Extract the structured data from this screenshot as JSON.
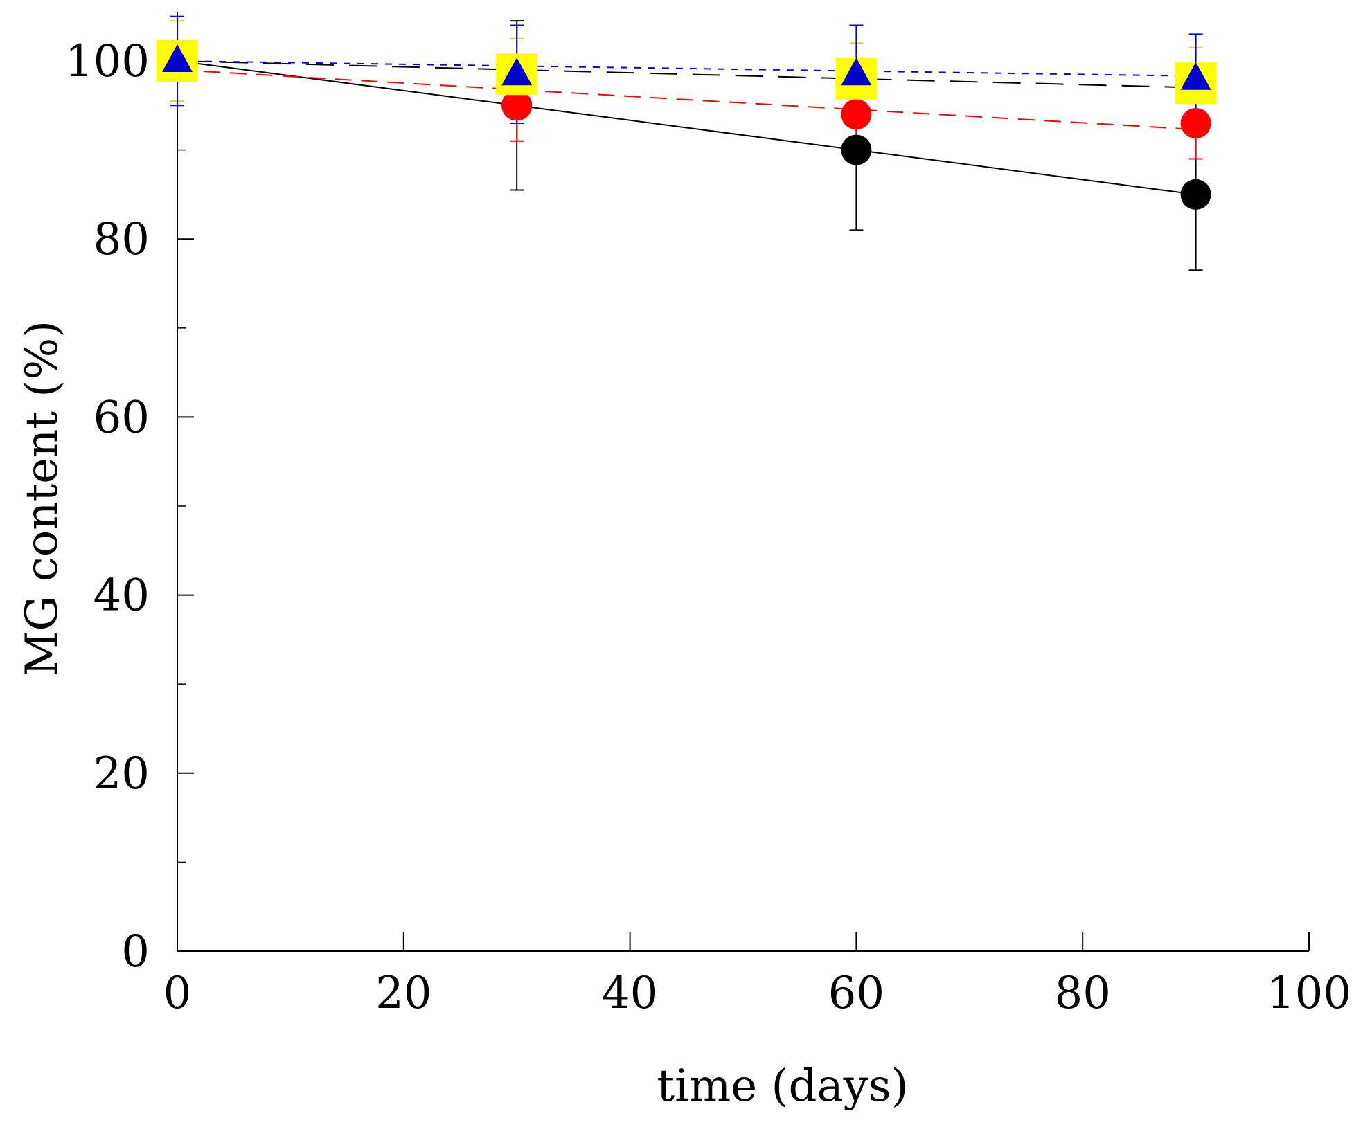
{
  "chart_data": {
    "type": "scatter",
    "title": "",
    "xlabel": "time (days)",
    "ylabel": "MG content (%)",
    "xlim": [
      0,
      100
    ],
    "ylim": [
      0,
      100
    ],
    "xticks": [
      0,
      20,
      40,
      60,
      80,
      100
    ],
    "yticks": [
      0,
      20,
      40,
      60,
      80,
      100
    ],
    "xtick_labels": [
      "0",
      "20",
      "40",
      "60",
      "80",
      "100"
    ],
    "ytick_labels": [
      "0",
      "20",
      "40",
      "60",
      "80",
      "100"
    ],
    "grid": false,
    "legend": false,
    "series": [
      {
        "name": "black-circles",
        "marker": "circle",
        "color": "#000000",
        "x": [
          0,
          30,
          60,
          90
        ],
        "y": [
          100,
          95,
          90,
          85
        ],
        "err": [
          0,
          9.5,
          9,
          8.5
        ],
        "fit_line": {
          "style": "solid",
          "color": "#000000",
          "x": [
            0,
            90
          ],
          "y": [
            100,
            85
          ]
        }
      },
      {
        "name": "red-circles",
        "marker": "circle",
        "color": "#ff0000",
        "x": [
          0,
          30,
          60,
          90
        ],
        "y": [
          100,
          95,
          94,
          93
        ],
        "err": [
          0,
          4,
          3.5,
          4
        ],
        "fit_line": {
          "style": "dashed",
          "color": "#ff0000",
          "x": [
            0,
            90
          ],
          "y": [
            99,
            92.3
          ]
        }
      },
      {
        "name": "yellow-squares",
        "marker": "square",
        "color": "#ffff00",
        "x": [
          0,
          30,
          60,
          90
        ],
        "y": [
          100,
          98.5,
          98,
          97.5
        ],
        "err": [
          4.5,
          4,
          4,
          4
        ],
        "fit_line": {
          "style": "long-dashed",
          "color": "#000000",
          "x": [
            0,
            90
          ],
          "y": [
            100,
            97
          ]
        }
      },
      {
        "name": "blue-triangles",
        "marker": "triangle",
        "color": "#0000cc",
        "x": [
          0,
          30,
          60,
          90
        ],
        "y": [
          100,
          98.5,
          98.5,
          98
        ],
        "err": [
          5,
          5.5,
          5.5,
          5
        ],
        "fit_line": {
          "style": "short-dashed",
          "color": "#0000ff",
          "x": [
            0,
            90
          ],
          "y": [
            100,
            98.3
          ]
        }
      }
    ]
  }
}
